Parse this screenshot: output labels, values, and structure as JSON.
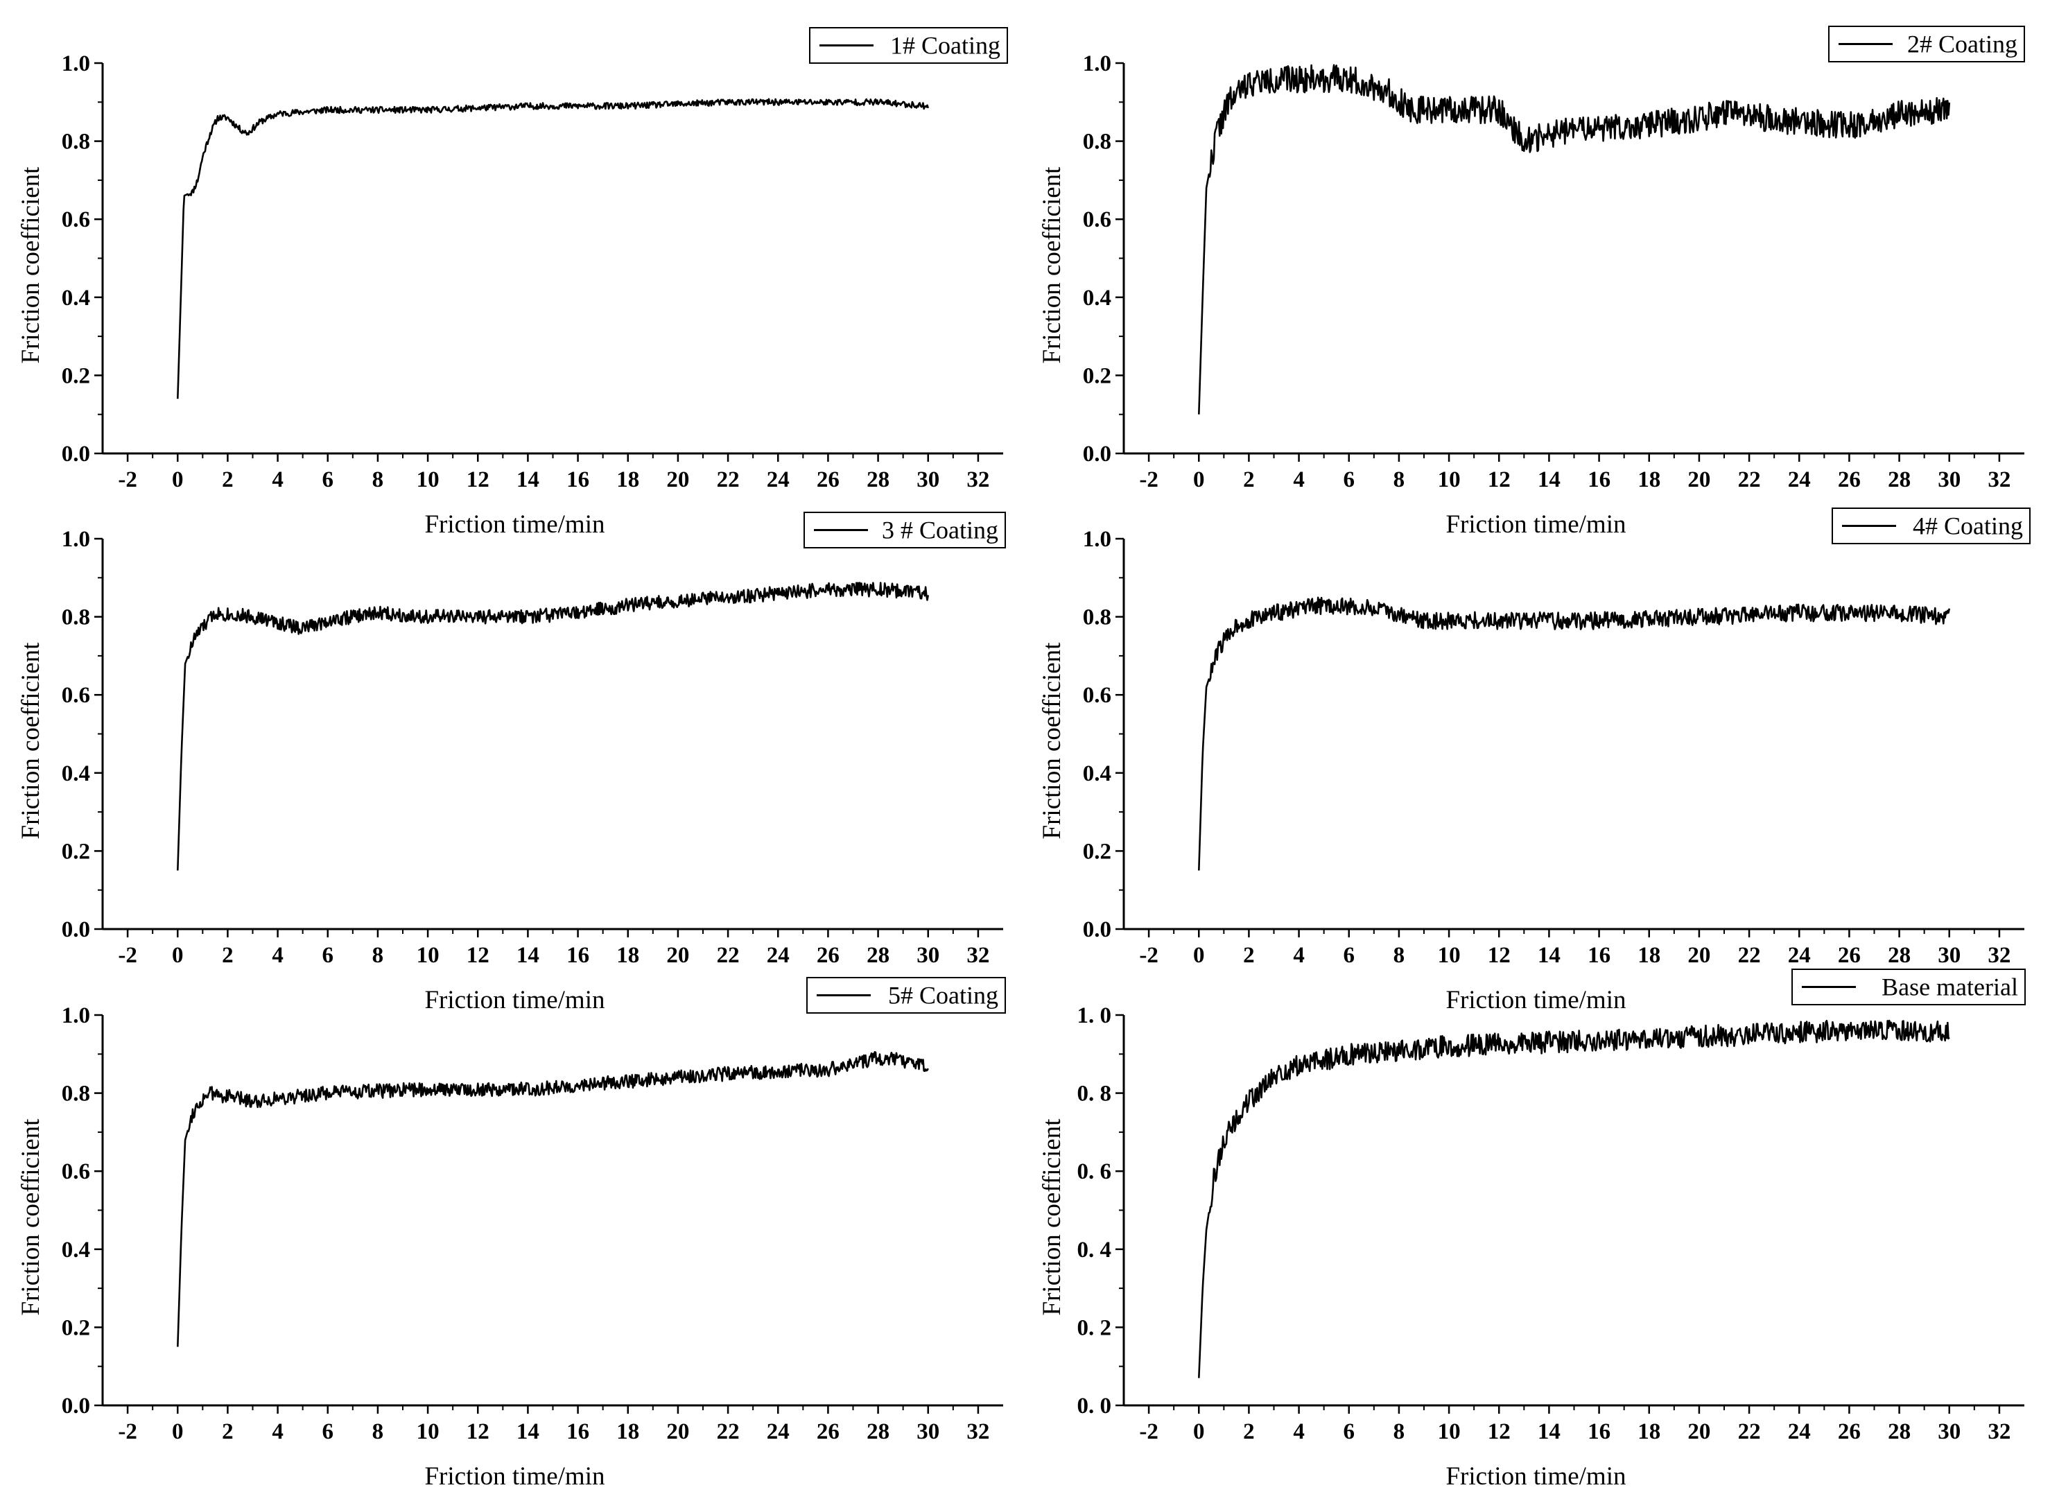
{
  "figure": {
    "panels": [
      {
        "id": "p1",
        "legend": "1# Coating",
        "ytick_format": "fixed1"
      },
      {
        "id": "p2",
        "legend": "2# Coating",
        "ytick_format": "fixed1"
      },
      {
        "id": "p3",
        "legend": "3 # Coating",
        "ytick_format": "fixed1"
      },
      {
        "id": "p4",
        "legend": "4# Coating",
        "ytick_format": "fixed1"
      },
      {
        "id": "p5",
        "legend": "5# Coating",
        "ytick_format": "fixed1"
      },
      {
        "id": "p6",
        "legend": "Base material",
        "ytick_format": "spaced"
      }
    ]
  },
  "chart_data": [
    {
      "type": "line",
      "legend": "1# Coating",
      "xlabel": "Friction time/min",
      "ylabel": "Friction coefficient",
      "xlim": [
        -3,
        33
      ],
      "ylim": [
        0,
        1.0
      ],
      "xticks": [
        -2,
        0,
        2,
        4,
        6,
        8,
        10,
        12,
        14,
        16,
        18,
        20,
        22,
        24,
        26,
        28,
        30,
        32
      ],
      "yticks": [
        0.0,
        0.2,
        0.4,
        0.6,
        0.8,
        1.0
      ],
      "grid": false,
      "legend_position": "top-right",
      "series": [
        {
          "name": "1# Coating",
          "color": "#000000",
          "noise": 0.008,
          "seed": 11,
          "points": [
            [
              0,
              0.14
            ],
            [
              0.15,
              0.45
            ],
            [
              0.25,
              0.66
            ],
            [
              0.6,
              0.67
            ],
            [
              0.8,
              0.7
            ],
            [
              1.0,
              0.76
            ],
            [
              1.3,
              0.82
            ],
            [
              1.6,
              0.86
            ],
            [
              2.0,
              0.86
            ],
            [
              2.5,
              0.83
            ],
            [
              2.8,
              0.82
            ],
            [
              3.3,
              0.85
            ],
            [
              4,
              0.87
            ],
            [
              6,
              0.88
            ],
            [
              10,
              0.88
            ],
            [
              14,
              0.89
            ],
            [
              18,
              0.89
            ],
            [
              22,
              0.9
            ],
            [
              26,
              0.9
            ],
            [
              28,
              0.9
            ],
            [
              30,
              0.89
            ]
          ]
        }
      ]
    },
    {
      "type": "line",
      "legend": "2# Coating",
      "xlabel": "Friction time/min",
      "ylabel": "Friction coefficient",
      "xlim": [
        -3,
        33
      ],
      "ylim": [
        0,
        1.0
      ],
      "xticks": [
        -2,
        0,
        2,
        4,
        6,
        8,
        10,
        12,
        14,
        16,
        18,
        20,
        22,
        24,
        26,
        28,
        30,
        32
      ],
      "yticks": [
        0.0,
        0.2,
        0.4,
        0.6,
        0.8,
        1.0
      ],
      "grid": false,
      "legend_position": "top-right",
      "series": [
        {
          "name": "2# Coating",
          "color": "#000000",
          "noise": 0.035,
          "seed": 22,
          "points": [
            [
              0,
              0.1
            ],
            [
              0.15,
              0.4
            ],
            [
              0.3,
              0.68
            ],
            [
              0.7,
              0.82
            ],
            [
              1.2,
              0.9
            ],
            [
              2,
              0.95
            ],
            [
              4,
              0.96
            ],
            [
              6,
              0.96
            ],
            [
              7.5,
              0.93
            ],
            [
              8.5,
              0.88
            ],
            [
              10,
              0.88
            ],
            [
              12,
              0.88
            ],
            [
              13,
              0.8
            ],
            [
              15,
              0.83
            ],
            [
              18,
              0.84
            ],
            [
              21,
              0.87
            ],
            [
              24,
              0.85
            ],
            [
              26,
              0.84
            ],
            [
              28,
              0.87
            ],
            [
              30,
              0.88
            ]
          ]
        }
      ]
    },
    {
      "type": "line",
      "legend": "3 # Coating",
      "xlabel": "Friction time/min",
      "ylabel": "Friction coefficient",
      "xlim": [
        -3,
        33
      ],
      "ylim": [
        0,
        1.0
      ],
      "xticks": [
        -2,
        0,
        2,
        4,
        6,
        8,
        10,
        12,
        14,
        16,
        18,
        20,
        22,
        24,
        26,
        28,
        30,
        32
      ],
      "yticks": [
        0.0,
        0.2,
        0.4,
        0.6,
        0.8,
        1.0
      ],
      "grid": false,
      "legend_position": "top-right",
      "series": [
        {
          "name": "3 # Coating",
          "color": "#000000",
          "noise": 0.018,
          "seed": 33,
          "points": [
            [
              0,
              0.15
            ],
            [
              0.15,
              0.45
            ],
            [
              0.3,
              0.68
            ],
            [
              0.7,
              0.75
            ],
            [
              1.5,
              0.81
            ],
            [
              3,
              0.8
            ],
            [
              5,
              0.77
            ],
            [
              6,
              0.79
            ],
            [
              8,
              0.81
            ],
            [
              10,
              0.8
            ],
            [
              14,
              0.8
            ],
            [
              16,
              0.81
            ],
            [
              18,
              0.83
            ],
            [
              22,
              0.85
            ],
            [
              26,
              0.87
            ],
            [
              28,
              0.87
            ],
            [
              30,
              0.86
            ]
          ]
        }
      ]
    },
    {
      "type": "line",
      "legend": "4# Coating",
      "xlabel": "Friction time/min",
      "ylabel": "Friction coefficient",
      "xlim": [
        -3,
        33
      ],
      "ylim": [
        0,
        1.0
      ],
      "xticks": [
        -2,
        0,
        2,
        4,
        6,
        8,
        10,
        12,
        14,
        16,
        18,
        20,
        22,
        24,
        26,
        28,
        30,
        32
      ],
      "yticks": [
        0.0,
        0.2,
        0.4,
        0.6,
        0.8,
        1.0
      ],
      "grid": false,
      "legend_position": "top-right",
      "series": [
        {
          "name": "4# Coating",
          "color": "#000000",
          "noise": 0.022,
          "seed": 44,
          "points": [
            [
              0,
              0.15
            ],
            [
              0.15,
              0.45
            ],
            [
              0.3,
              0.62
            ],
            [
              0.8,
              0.72
            ],
            [
              1.5,
              0.78
            ],
            [
              3,
              0.81
            ],
            [
              5,
              0.83
            ],
            [
              7,
              0.82
            ],
            [
              9,
              0.79
            ],
            [
              12,
              0.79
            ],
            [
              16,
              0.79
            ],
            [
              20,
              0.8
            ],
            [
              24,
              0.81
            ],
            [
              28,
              0.81
            ],
            [
              30,
              0.8
            ]
          ]
        }
      ]
    },
    {
      "type": "line",
      "legend": "5# Coating",
      "xlabel": "Friction time/min",
      "ylabel": "Friction coefficient",
      "xlim": [
        -3,
        33
      ],
      "ylim": [
        0,
        1.0
      ],
      "xticks": [
        -2,
        0,
        2,
        4,
        6,
        8,
        10,
        12,
        14,
        16,
        18,
        20,
        22,
        24,
        26,
        28,
        30,
        32
      ],
      "yticks": [
        0.0,
        0.2,
        0.4,
        0.6,
        0.8,
        1.0
      ],
      "grid": false,
      "legend_position": "top-right",
      "series": [
        {
          "name": "5# Coating",
          "color": "#000000",
          "noise": 0.018,
          "seed": 55,
          "points": [
            [
              0,
              0.15
            ],
            [
              0.15,
              0.45
            ],
            [
              0.3,
              0.68
            ],
            [
              0.6,
              0.75
            ],
            [
              1.2,
              0.8
            ],
            [
              3,
              0.78
            ],
            [
              6,
              0.8
            ],
            [
              10,
              0.81
            ],
            [
              14,
              0.81
            ],
            [
              18,
              0.83
            ],
            [
              22,
              0.85
            ],
            [
              26,
              0.86
            ],
            [
              28,
              0.89
            ],
            [
              29.5,
              0.88
            ],
            [
              30,
              0.86
            ]
          ]
        }
      ]
    },
    {
      "type": "line",
      "legend": "Base material",
      "xlabel": "Friction time/min",
      "ylabel": "Friction coefficient",
      "xlim": [
        -3,
        33
      ],
      "ylim": [
        0,
        1.0
      ],
      "xticks": [
        -2,
        0,
        2,
        4,
        6,
        8,
        10,
        12,
        14,
        16,
        18,
        20,
        22,
        24,
        26,
        28,
        30,
        32
      ],
      "yticks": [
        0.0,
        0.2,
        0.4,
        0.6,
        0.8,
        1.0
      ],
      "grid": false,
      "legend_position": "top-right",
      "series": [
        {
          "name": "Base material",
          "color": "#000000",
          "noise": 0.028,
          "seed": 66,
          "points": [
            [
              0,
              0.07
            ],
            [
              0.15,
              0.3
            ],
            [
              0.3,
              0.45
            ],
            [
              0.6,
              0.58
            ],
            [
              1,
              0.68
            ],
            [
              2,
              0.78
            ],
            [
              3,
              0.84
            ],
            [
              4,
              0.87
            ],
            [
              6,
              0.9
            ],
            [
              8,
              0.91
            ],
            [
              10,
              0.92
            ],
            [
              14,
              0.93
            ],
            [
              18,
              0.94
            ],
            [
              22,
              0.95
            ],
            [
              26,
              0.96
            ],
            [
              30,
              0.96
            ]
          ]
        }
      ]
    }
  ]
}
